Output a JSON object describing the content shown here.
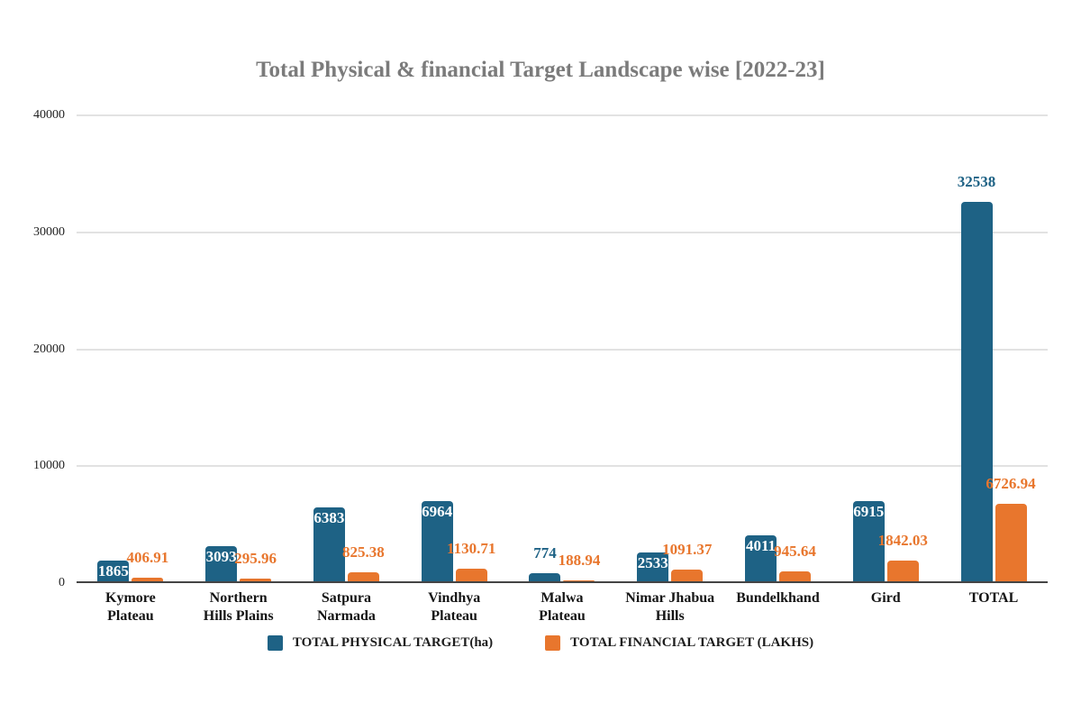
{
  "title": {
    "text": "Total Physical & financial Target Landscape wise [2022-23]",
    "color": "#7b7b7b"
  },
  "chart_data": {
    "type": "bar",
    "title": "Total Physical & financial Target Landscape wise [2022-23]",
    "categories": [
      "Kymore Plateau",
      "Northern Hills Plains",
      "Satpura Narmada",
      "Vindhya Plateau",
      "Malwa Plateau",
      "Nimar Jhabua Hills",
      "Bundelkhand",
      "Gird",
      "TOTAL"
    ],
    "series": [
      {
        "name": "TOTAL PHYSICAL TARGET(ha)",
        "key": "physical",
        "color": "#1e6285",
        "values": [
          1865,
          3093,
          6383,
          6964,
          774,
          2533,
          4011,
          6915,
          32538
        ],
        "data_labels": [
          "1865",
          "3093",
          "6383",
          "6964",
          "774",
          "2533",
          "4011",
          "6915",
          "32538"
        ],
        "label_placement": [
          "inside",
          "inside",
          "inside",
          "inside",
          "above",
          "inside",
          "inside",
          "inside",
          "above"
        ]
      },
      {
        "name": "TOTAL FINANCIAL TARGET (LAKHS)",
        "key": "financial",
        "color": "#e8762d",
        "values": [
          406.91,
          295.96,
          825.38,
          1130.71,
          188.94,
          1091.37,
          945.64,
          1842.03,
          6726.94
        ],
        "data_labels": [
          "406.91",
          "295.96",
          "825.38",
          "1130.71",
          "188.94",
          "1091.37",
          "945.64",
          "1842.03",
          "6726.94"
        ],
        "label_placement": [
          "above",
          "above",
          "above",
          "above",
          "above",
          "above",
          "above",
          "above",
          "above"
        ]
      }
    ],
    "xlabel": "",
    "ylabel": "",
    "ylim": [
      0,
      40000
    ],
    "yticks": [
      0,
      10000,
      20000,
      30000,
      40000
    ],
    "ytick_labels": [
      "0",
      "10000",
      "20000",
      "30000",
      "40000"
    ],
    "grid": true,
    "legend_position": "bottom"
  },
  "colors": {
    "grid": "#e2e2e2",
    "axis": "#454545",
    "tick_text": "#1f1f1f",
    "category_text": "#141414",
    "background": "#ffffff"
  }
}
